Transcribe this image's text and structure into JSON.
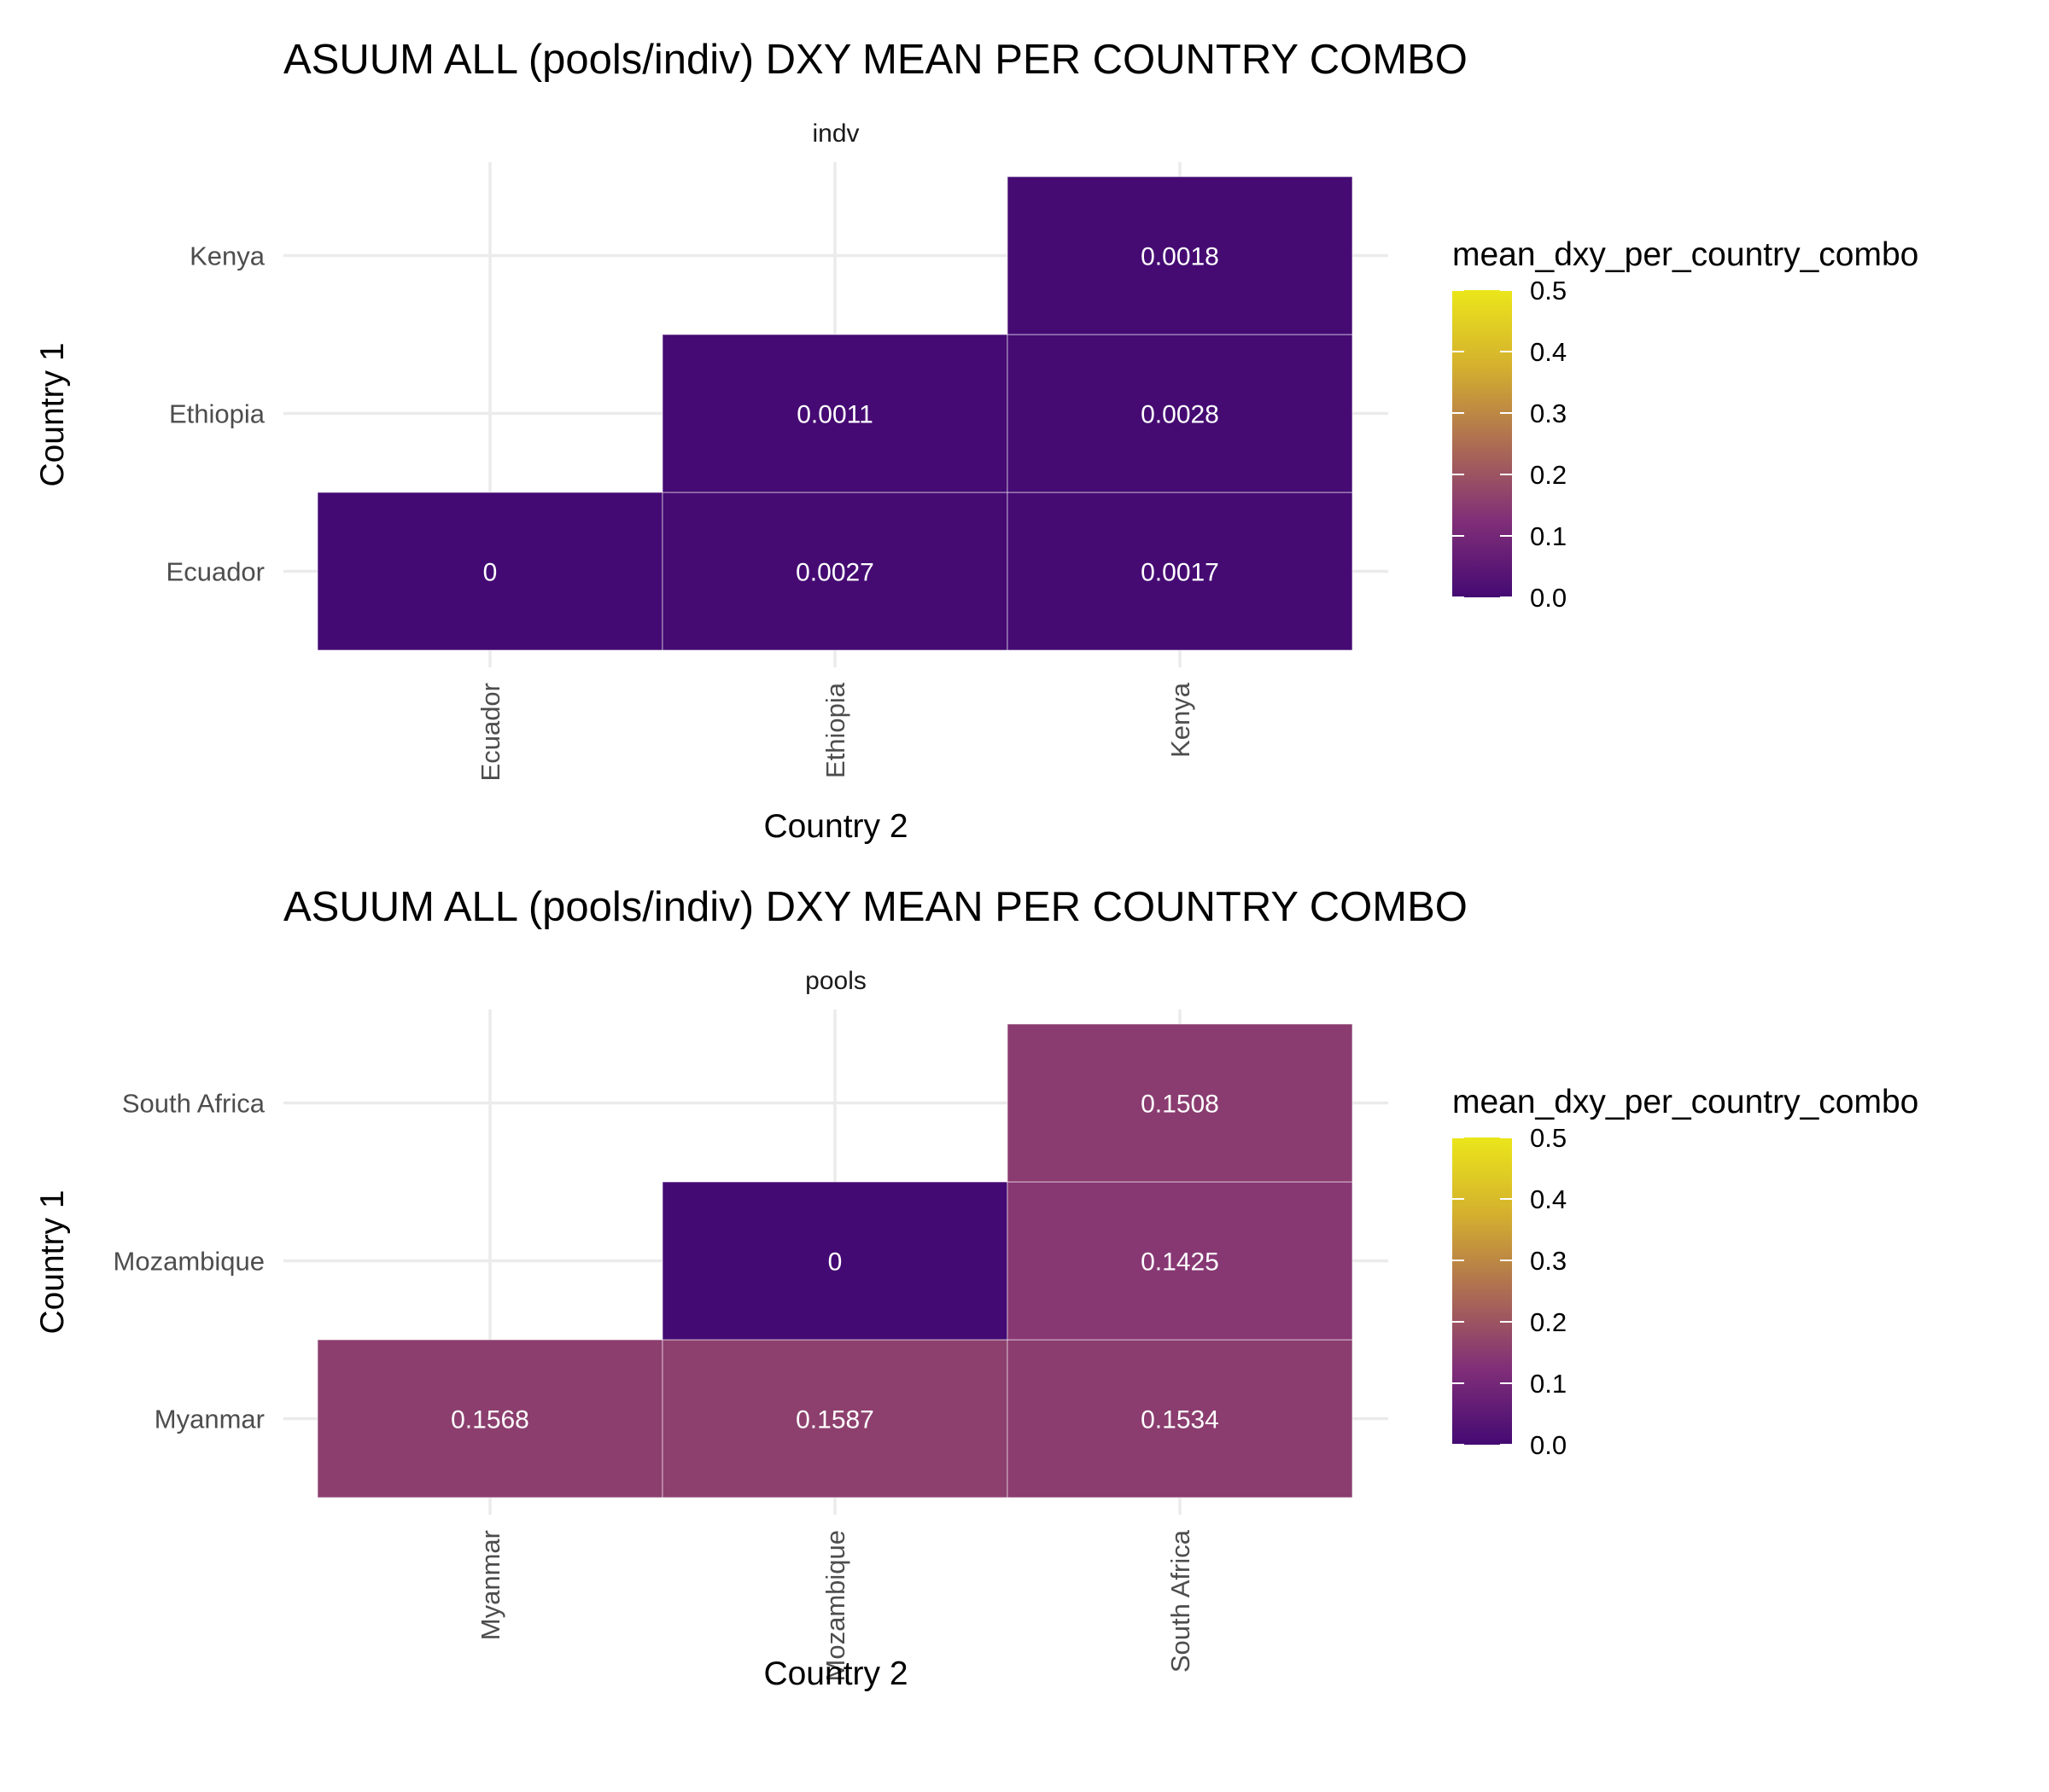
{
  "chart_data": [
    {
      "type": "heatmap",
      "title": "ASUUM ALL (pools/indiv) DXY MEAN PER COUNTRY COMBO",
      "facet": "indv",
      "xlabel": "Country 2",
      "ylabel": "Country 1",
      "x_categories": [
        "Ecuador",
        "Ethiopia",
        "Kenya"
      ],
      "y_categories": [
        "Ecuador",
        "Ethiopia",
        "Kenya"
      ],
      "cells": [
        {
          "country1": "Ecuador",
          "country2": "Ecuador",
          "value": 0,
          "label": "0"
        },
        {
          "country1": "Ecuador",
          "country2": "Ethiopia",
          "value": 0.0027,
          "label": "0.0027"
        },
        {
          "country1": "Ecuador",
          "country2": "Kenya",
          "value": 0.0017,
          "label": "0.0017"
        },
        {
          "country1": "Ethiopia",
          "country2": "Ethiopia",
          "value": 0.0011,
          "label": "0.0011"
        },
        {
          "country1": "Ethiopia",
          "country2": "Kenya",
          "value": 0.0028,
          "label": "0.0028"
        },
        {
          "country1": "Kenya",
          "country2": "Kenya",
          "value": 0.0018,
          "label": "0.0018"
        }
      ],
      "legend": {
        "title": "mean_dxy_per_country_combo",
        "limits": [
          0,
          0.5
        ],
        "ticks": [
          "0.0",
          "0.1",
          "0.2",
          "0.3",
          "0.4",
          "0.5"
        ],
        "colors": [
          "#440a73",
          "#812f78",
          "#ad6d52",
          "#d4b02e",
          "#ebe61a"
        ],
        "placement": "right"
      }
    },
    {
      "type": "heatmap",
      "title": "ASUUM ALL (pools/indiv) DXY MEAN PER COUNTRY COMBO",
      "facet": "pools",
      "xlabel": "Country 2",
      "ylabel": "Country 1",
      "x_categories": [
        "Myanmar",
        "Mozambique",
        "South Africa"
      ],
      "y_categories": [
        "Myanmar",
        "Mozambique",
        "South Africa"
      ],
      "cells": [
        {
          "country1": "Myanmar",
          "country2": "Myanmar",
          "value": 0.1568,
          "label": "0.1568"
        },
        {
          "country1": "Myanmar",
          "country2": "Mozambique",
          "value": 0.1587,
          "label": "0.1587"
        },
        {
          "country1": "Myanmar",
          "country2": "South Africa",
          "value": 0.1534,
          "label": "0.1534"
        },
        {
          "country1": "Mozambique",
          "country2": "Mozambique",
          "value": 0,
          "label": "0"
        },
        {
          "country1": "Mozambique",
          "country2": "South Africa",
          "value": 0.1425,
          "label": "0.1425"
        },
        {
          "country1": "South Africa",
          "country2": "South Africa",
          "value": 0.1508,
          "label": "0.1508"
        }
      ],
      "legend": {
        "title": "mean_dxy_per_country_combo",
        "limits": [
          0,
          0.5
        ],
        "ticks": [
          "0.0",
          "0.1",
          "0.2",
          "0.3",
          "0.4",
          "0.5"
        ],
        "colors": [
          "#440a73",
          "#812f78",
          "#ad6d52",
          "#d4b02e",
          "#ebe61a"
        ],
        "placement": "right"
      }
    }
  ]
}
